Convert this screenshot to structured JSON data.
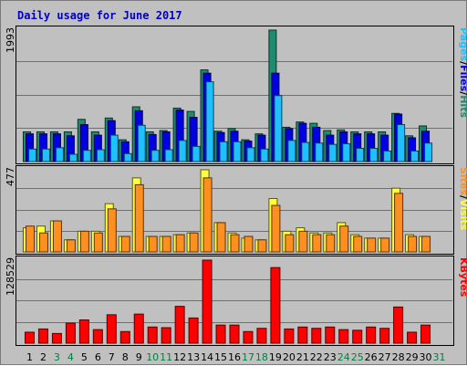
{
  "chart_data": {
    "title": "Daily usage for June 2017",
    "categories": [
      "1",
      "2",
      "3",
      "4",
      "5",
      "6",
      "7",
      "8",
      "9",
      "10",
      "11",
      "12",
      "13",
      "14",
      "15",
      "16",
      "17",
      "18",
      "19",
      "20",
      "21",
      "22",
      "23",
      "24",
      "25",
      "26",
      "27",
      "28",
      "29",
      "30",
      "31"
    ],
    "weekend_days": [
      "3",
      "4",
      "10",
      "11",
      "17",
      "18",
      "24",
      "25",
      "31"
    ],
    "colors": {
      "hits": "#1e8c6e",
      "files": "#0000e0",
      "pages": "#20c0ff",
      "visits": "#ffff40",
      "sites": "#ff9020",
      "kbytes": "#ff0000",
      "weekday_label": "#000000",
      "weekend_label": "#008040",
      "title": "#0000c8"
    },
    "panels": [
      {
        "id": "usage",
        "type": "bar",
        "ymax_label": "1993",
        "ymax": 1993,
        "legend": [
          {
            "text": "Hits",
            "color": "#1e8c6e"
          },
          {
            "text": "/",
            "color": "#000000"
          },
          {
            "text": "Files",
            "color": "#0000e0"
          },
          {
            "text": "/",
            "color": "#000000"
          },
          {
            "text": "Pages",
            "color": "#20c0ff"
          }
        ],
        "series": [
          {
            "name": "Hits",
            "values": [
              450,
              450,
              450,
              450,
              640,
              450,
              660,
              330,
              830,
              450,
              470,
              810,
              760,
              1390,
              460,
              500,
              330,
              420,
              1993,
              520,
              600,
              580,
              470,
              480,
              450,
              450,
              450,
              730,
              390,
              540,
              0
            ]
          },
          {
            "name": "Files",
            "values": [
              420,
              420,
              420,
              390,
              560,
              400,
              620,
              300,
              770,
              410,
              450,
              780,
              670,
              1340,
              440,
              460,
              310,
              400,
              1340,
              500,
              580,
              520,
              400,
              450,
              420,
              420,
              400,
              720,
              360,
              460,
              0
            ]
          },
          {
            "name": "Pages",
            "values": [
              190,
              190,
              210,
              110,
              170,
              180,
              400,
              120,
              550,
              170,
              180,
              320,
              230,
              1210,
              300,
              300,
              210,
              190,
              1000,
              320,
              290,
              280,
              260,
              270,
              200,
              200,
              160,
              560,
              160,
              280,
              0
            ]
          }
        ]
      },
      {
        "id": "visits-sites",
        "type": "bar",
        "ymax_label": "477",
        "ymax": 477,
        "legend": [
          {
            "text": "Visits",
            "color": "#ffff40"
          },
          {
            "text": "/",
            "color": "#000000"
          },
          {
            "text": "Sites",
            "color": "#ff9020"
          }
        ],
        "series": [
          {
            "name": "Visits",
            "values": [
              140,
              150,
              180,
              70,
              120,
              120,
              280,
              90,
              430,
              90,
              90,
              100,
              110,
              477,
              170,
              110,
              80,
              70,
              310,
              120,
              140,
              110,
              110,
              170,
              100,
              80,
              80,
              370,
              100,
              90,
              0
            ]
          },
          {
            "name": "Sites",
            "values": [
              150,
              110,
              180,
              70,
              120,
              110,
              250,
              90,
              390,
              90,
              90,
              100,
              110,
              430,
              170,
              100,
              90,
              70,
              270,
              100,
              120,
              100,
              100,
              150,
              90,
              80,
              80,
              340,
              90,
              90,
              0
            ]
          }
        ]
      },
      {
        "id": "kbytes",
        "type": "bar",
        "ymax_label": "128529",
        "ymax": 128529,
        "legend": [
          {
            "text": "KBytes",
            "color": "#ff0000"
          }
        ],
        "series": [
          {
            "name": "KBytes",
            "values": [
              17000,
              22000,
              15000,
              31000,
              36000,
              21000,
              44000,
              18000,
              45000,
              25000,
              24000,
              57000,
              39000,
              128529,
              28000,
              28000,
              18000,
              23000,
              117000,
              22000,
              25000,
              23000,
              25000,
              21000,
              20000,
              25000,
              23000,
              56000,
              17000,
              28000,
              0
            ]
          }
        ]
      }
    ]
  }
}
